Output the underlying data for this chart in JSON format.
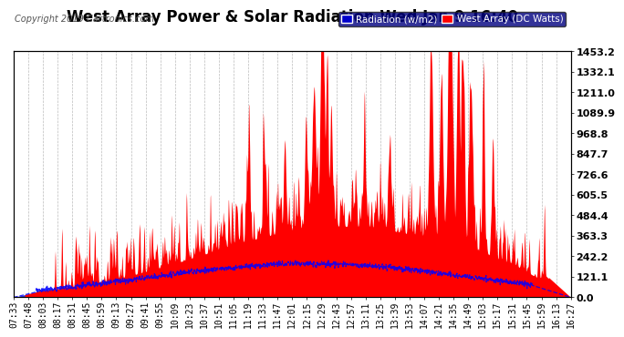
{
  "title": "West Array Power & Solar Radiation Wed Jan 9 16:40",
  "copyright": "Copyright 2019 Cartronics.com",
  "legend_labels": [
    "Radiation (w/m2)",
    "West Array (DC Watts)"
  ],
  "legend_colors": [
    "#0000ff",
    "#ff0000"
  ],
  "y_ticks": [
    0.0,
    121.1,
    242.2,
    363.3,
    484.4,
    605.5,
    726.6,
    847.7,
    968.8,
    1089.9,
    1211.0,
    1332.1,
    1453.2
  ],
  "y_max": 1453.2,
  "y_min": 0.0,
  "background_color": "#ffffff",
  "plot_bg_color": "#ffffff",
  "grid_color": "#bbbbbb",
  "x_tick_labels": [
    "07:33",
    "07:48",
    "08:03",
    "08:17",
    "08:31",
    "08:45",
    "08:59",
    "09:13",
    "09:27",
    "09:41",
    "09:55",
    "10:09",
    "10:23",
    "10:37",
    "10:51",
    "11:05",
    "11:19",
    "11:33",
    "11:47",
    "12:01",
    "12:15",
    "12:29",
    "12:43",
    "12:57",
    "13:11",
    "13:25",
    "13:39",
    "13:53",
    "14:07",
    "14:21",
    "14:35",
    "14:49",
    "15:03",
    "15:17",
    "15:31",
    "15:45",
    "15:59",
    "16:13",
    "16:27"
  ],
  "title_fontsize": 12,
  "tick_fontsize": 7,
  "copyright_fontsize": 7,
  "ytick_fontsize": 8
}
